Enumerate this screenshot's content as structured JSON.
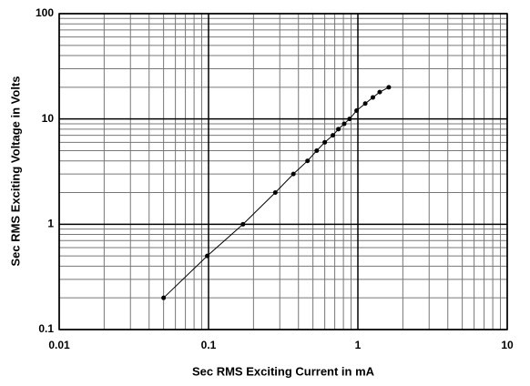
{
  "chart_data": {
    "type": "line",
    "x_label": "Sec RMS Exciting Current in mA",
    "y_label": "Sec RMS Exciting Voltage in Volts",
    "x": [
      0.05,
      0.098,
      0.17,
      0.28,
      0.37,
      0.46,
      0.53,
      0.6,
      0.68,
      0.74,
      0.81,
      0.88,
      0.98,
      1.12,
      1.26,
      1.4,
      1.61
    ],
    "values": [
      0.2,
      0.5,
      1,
      2,
      3,
      4,
      5,
      6,
      7,
      8,
      9,
      10,
      12,
      14,
      16,
      18,
      20
    ],
    "color": "#000000",
    "xlim": [
      0.01,
      10
    ],
    "ylim": [
      0.1,
      100
    ],
    "xticks": [
      0.01,
      0.1,
      1,
      10
    ],
    "yticks": [
      0.1,
      1,
      10,
      100
    ],
    "xscale": "log",
    "yscale": "log",
    "grid": true,
    "minor_grid": true
  }
}
